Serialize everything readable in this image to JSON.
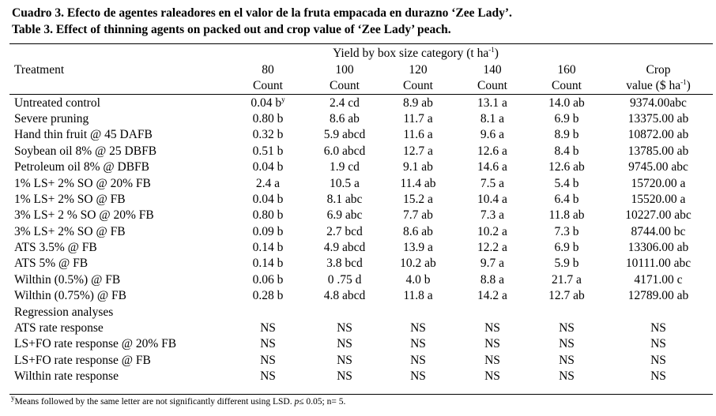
{
  "title_es": "Cuadro 3. Efecto de agentes raleadores en el valor de la fruta empacada en durazno ‘Zee Lady’.",
  "title_en": "Table 3. Effect of thinning agents on packed out and crop value of ‘Zee Lady’ peach.",
  "header": {
    "group": "Yield by box size category (t ha",
    "group_sup": "-1",
    "group_end": ")",
    "treatment": "Treatment",
    "sizes": [
      "80",
      "100",
      "120",
      "140",
      "160"
    ],
    "count": "Count",
    "crop_line1": "Crop",
    "crop_line2": "value ($ ha",
    "crop_sup": "-1",
    "crop_end": ")"
  },
  "rows": [
    {
      "t": "Untreated control",
      "v": [
        "0.04 b",
        "2.4 cd",
        "8.9 ab",
        "13.1 a",
        "14.0 ab",
        "9374.00abc"
      ],
      "sup": "y"
    },
    {
      "t": "Severe pruning",
      "v": [
        "0.80 b",
        "8.6 ab",
        "11.7 a",
        "8.1 a",
        "6.9 b",
        "13375.00 ab"
      ]
    },
    {
      "t": "Hand thin fruit @ 45 DAFB",
      "v": [
        "0.32 b",
        "5.9 abcd",
        "11.6 a",
        "9.6 a",
        "8.9 b",
        "10872.00 ab"
      ]
    },
    {
      "t": "Soybean oil 8% @ 25 DBFB",
      "v": [
        "0.51 b",
        "6.0 abcd",
        "12.7 a",
        "12.6 a",
        "8.4 b",
        "13785.00 ab"
      ]
    },
    {
      "t": "Petroleum oil 8% @ DBFB",
      "v": [
        "0.04 b",
        "1.9 cd",
        "9.1 ab",
        "14.6 a",
        "12.6 ab",
        "9745.00 abc"
      ]
    },
    {
      "t": "1% LS+ 2% SO @ 20% FB",
      "v": [
        "2.4 a",
        "10.5 a",
        "11.4 ab",
        "7.5 a",
        "5.4 b",
        "15720.00 a"
      ]
    },
    {
      "t": "1% LS+ 2% SO @ FB",
      "v": [
        "0.04 b",
        "8.1 abc",
        "15.2 a",
        "10.4 a",
        "6.4 b",
        "15520.00 a"
      ]
    },
    {
      "t": "3% LS+ 2 % SO @ 20% FB",
      "v": [
        "0.80 b",
        "6.9 abc",
        "7.7 ab",
        "7.3 a",
        "11.8 ab",
        "10227.00 abc"
      ]
    },
    {
      "t": "3% LS+ 2% SO @ FB",
      "v": [
        "0.09 b",
        "2.7 bcd",
        "8.6 ab",
        "10.2 a",
        "7.3 b",
        "8744.00 bc"
      ]
    },
    {
      "t": "ATS 3.5% @ FB",
      "v": [
        "0.14 b",
        "4.9 abcd",
        "13.9 a",
        "12.2 a",
        "6.9 b",
        "13306.00 ab"
      ]
    },
    {
      "t": "ATS 5% @ FB",
      "v": [
        "0.14 b",
        "3.8 bcd",
        "10.2 ab",
        "9.7 a",
        "5.9 b",
        "10111.00 abc"
      ]
    },
    {
      "t": "Wilthin (0.5%) @ FB",
      "v": [
        "0.06 b",
        "0 .75 d",
        "4.0 b",
        "8.8 a",
        "21.7 a",
        "4171.00 c"
      ]
    },
    {
      "t": "Wilthin (0.75%) @ FB",
      "v": [
        "0.28 b",
        "4.8 abcd",
        "11.8 a",
        "14.2 a",
        "12.7 ab",
        "12789.00 ab"
      ]
    },
    {
      "t": "Regression analyses",
      "v": [
        "",
        "",
        "",
        "",
        "",
        ""
      ]
    },
    {
      "t": "ATS rate response",
      "v": [
        "NS",
        "NS",
        "NS",
        "NS",
        "NS",
        "NS"
      ]
    },
    {
      "t": "LS+FO rate response @ 20% FB",
      "v": [
        "NS",
        "NS",
        "NS",
        "NS",
        "NS",
        "NS"
      ]
    },
    {
      "t": "LS+FO rate response @ FB",
      "v": [
        "NS",
        "NS",
        "NS",
        "NS",
        "NS",
        "NS"
      ]
    },
    {
      "t": "Wilthin rate response",
      "v": [
        "NS",
        "NS",
        "NS",
        "NS",
        "NS",
        "NS"
      ]
    }
  ],
  "footnote": {
    "sup": "y",
    "text_a": "Means followed by the same letter are not significantly different using LSD. ",
    "p": "p",
    "text_b": "≤ 0.05; n= 5."
  }
}
